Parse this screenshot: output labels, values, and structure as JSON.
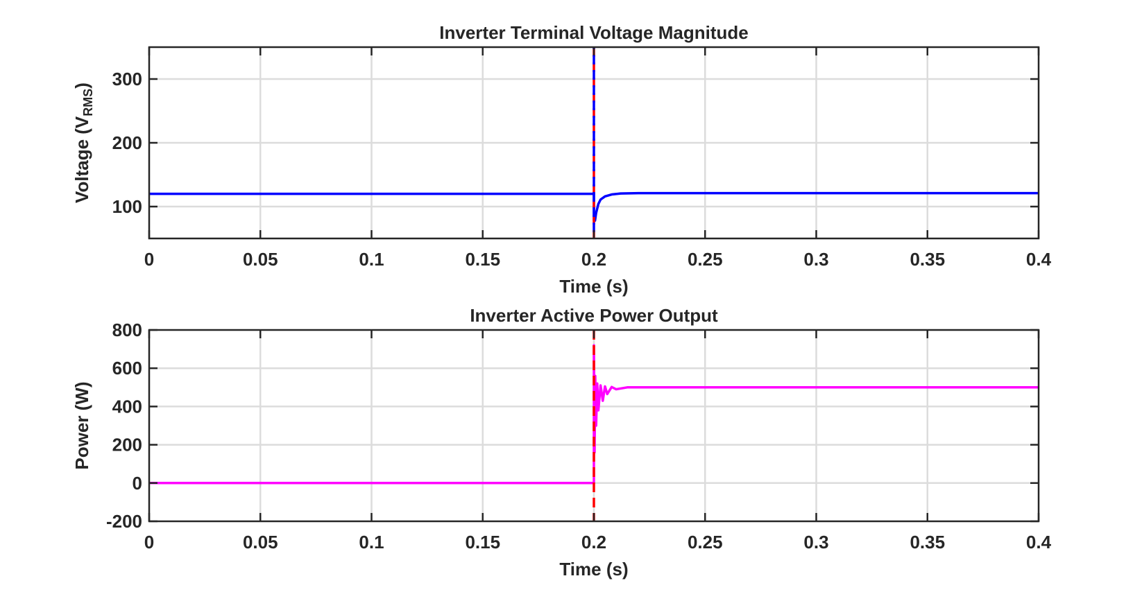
{
  "chart_data": [
    {
      "type": "line",
      "title": "Inverter Terminal Voltage Magnitude",
      "xlabel": "Time (s)",
      "ylabel": "Voltage (V",
      "ylabel_sub": "RMS",
      "ylabel_close": ")",
      "xlim": [
        0,
        0.4
      ],
      "ylim": [
        50,
        350
      ],
      "xticks": [
        0,
        0.05,
        0.1,
        0.15,
        0.2,
        0.25,
        0.3,
        0.35,
        0.4
      ],
      "xtick_labels": [
        "0",
        "0.05",
        "0.1",
        "0.15",
        "0.2",
        "0.25",
        "0.3",
        "0.35",
        "0.4"
      ],
      "yticks": [
        100,
        200,
        300
      ],
      "ytick_labels": [
        "100",
        "200",
        "300"
      ],
      "grid": true,
      "event_marker": {
        "x": 0.2,
        "colors": [
          "#ff0000",
          "#0000ff"
        ]
      },
      "series": [
        {
          "color": "#0000ff",
          "x": [
            0,
            0.2,
            0.2,
            0.2005,
            0.201,
            0.202,
            0.203,
            0.205,
            0.208,
            0.212,
            0.22,
            0.25,
            0.3,
            0.4
          ],
          "y": [
            120,
            120,
            78,
            78,
            90,
            104,
            111,
            116,
            119,
            120.5,
            121,
            121,
            121,
            121
          ]
        }
      ]
    },
    {
      "type": "line",
      "title": "Inverter Active Power Output",
      "xlabel": "Time (s)",
      "ylabel": "Power (W)",
      "xlim": [
        0,
        0.4
      ],
      "ylim": [
        -200,
        800
      ],
      "xticks": [
        0,
        0.05,
        0.1,
        0.15,
        0.2,
        0.25,
        0.3,
        0.35,
        0.4
      ],
      "xtick_labels": [
        "0",
        "0.05",
        "0.1",
        "0.15",
        "0.2",
        "0.25",
        "0.3",
        "0.35",
        "0.4"
      ],
      "yticks": [
        -200,
        0,
        200,
        400,
        600,
        800
      ],
      "ytick_labels": [
        "-200",
        "0",
        "200",
        "400",
        "600",
        "800"
      ],
      "grid": true,
      "event_marker": {
        "x": 0.2,
        "colors": [
          "#ff0000"
        ]
      },
      "series": [
        {
          "color": "#ff00ff",
          "x": [
            0,
            0.2,
            0.2,
            0.2003,
            0.2006,
            0.201,
            0.2015,
            0.202,
            0.203,
            0.204,
            0.205,
            0.206,
            0.208,
            0.21,
            0.215,
            0.22,
            0.3,
            0.4
          ],
          "y": [
            0,
            0,
            720,
            160,
            560,
            300,
            520,
            380,
            510,
            430,
            505,
            465,
            502,
            490,
            500,
            500,
            500,
            500
          ]
        }
      ]
    }
  ]
}
